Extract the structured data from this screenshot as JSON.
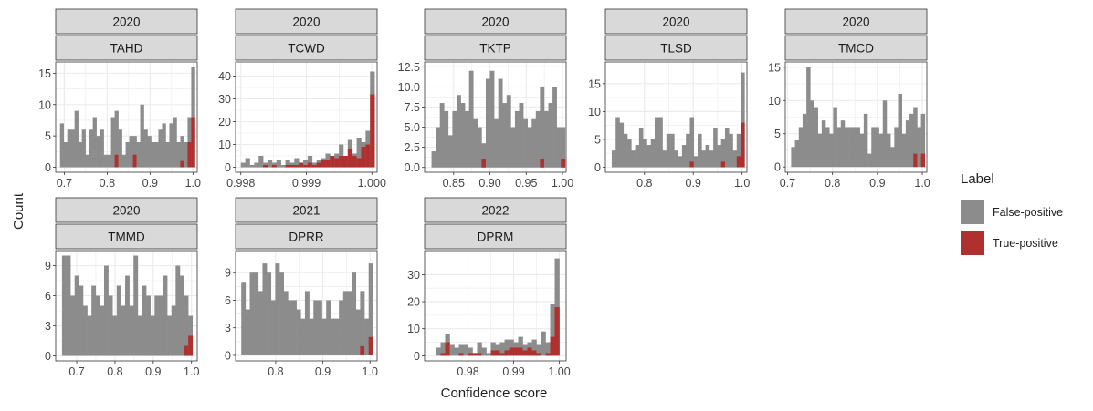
{
  "colors": {
    "false_positive": "#8c8c8c",
    "true_positive": "#b0302f",
    "strip_bg": "#d9d9d9",
    "grid": "#ebebeb"
  },
  "chart_data": {
    "type": "bar",
    "subtype": "faceted-histogram",
    "xlabel": "Confidence score",
    "ylabel": "Count",
    "legend": {
      "title": "Label",
      "placement": "right",
      "entries": [
        "False-positive",
        "True-positive"
      ]
    },
    "panels": [
      {
        "year": "2020",
        "name": "TAHD",
        "xlim": [
          0.68,
          1.01
        ],
        "ylim": [
          -0.8,
          16.8
        ],
        "xticks": [
          0.7,
          0.8,
          0.9,
          1.0
        ],
        "xtick_labels": [
          "0.7",
          "0.8",
          "0.9",
          "1.0"
        ],
        "yticks": [
          0,
          5,
          10,
          15
        ],
        "ytick_labels": [
          "0",
          "5",
          "10",
          "15"
        ],
        "bins": [
          0.69,
          0.6985,
          0.707,
          0.7155,
          0.724,
          0.7325,
          0.741,
          0.7495,
          0.758,
          0.7665,
          0.775,
          0.7835,
          0.792,
          0.8005,
          0.809,
          0.8175,
          0.826,
          0.8345,
          0.843,
          0.8515,
          0.86,
          0.8685,
          0.877,
          0.8855,
          0.894,
          0.9025,
          0.911,
          0.9195,
          0.928,
          0.9365,
          0.945,
          0.9535,
          0.962,
          0.9705,
          0.979,
          0.9875,
          0.996,
          1.0045
        ],
        "false_positive": [
          7,
          4,
          6,
          6,
          9,
          4,
          6,
          2,
          6,
          8,
          5,
          6,
          2,
          2,
          8,
          9,
          6,
          2,
          4,
          5,
          5,
          4,
          10,
          6,
          5,
          4,
          4,
          6,
          7,
          4,
          7,
          8,
          4,
          5,
          4,
          8,
          16
        ],
        "true_positive": [
          0,
          0,
          0,
          0,
          0,
          0,
          0,
          0,
          0,
          0,
          0,
          0,
          0,
          0,
          0,
          2,
          0,
          0,
          0,
          0,
          2,
          0,
          0,
          0,
          0,
          0,
          0,
          0,
          0,
          0,
          0,
          0,
          0,
          1,
          0,
          4,
          8
        ]
      },
      {
        "year": "2020",
        "name": "TCWD",
        "xlim": [
          0.99792,
          1.00008
        ],
        "ylim": [
          -2.2,
          46.2
        ],
        "xticks": [
          0.998,
          0.999,
          1.0
        ],
        "xtick_labels": [
          "0.998",
          "0.999",
          "1.000"
        ],
        "yticks": [
          0,
          10,
          20,
          30,
          40
        ],
        "ytick_labels": [
          "0",
          "10",
          "20",
          "30",
          "40"
        ],
        "bins": [
          0.998,
          0.998068,
          0.998136,
          0.998204,
          0.998272,
          0.99834,
          0.998408,
          0.998476,
          0.998544,
          0.998612,
          0.99868,
          0.998748,
          0.998816,
          0.998884,
          0.998952,
          0.99902,
          0.999088,
          0.999156,
          0.999224,
          0.999292,
          0.99936,
          0.999428,
          0.999496,
          0.999564,
          0.999632,
          0.9997,
          0.999768,
          0.999836,
          0.999904,
          0.999972,
          1.00004
        ],
        "false_positive": [
          2,
          4,
          1,
          2,
          5,
          2,
          3,
          2,
          3,
          1,
          3,
          2,
          4,
          2,
          3,
          5,
          2,
          3,
          4,
          6,
          5,
          6,
          10,
          5,
          12,
          6,
          13,
          11,
          16,
          42
        ],
        "true_positive": [
          0,
          0,
          0,
          0,
          0,
          1,
          0,
          1,
          0,
          0,
          1,
          1,
          1,
          2,
          1,
          2,
          1,
          2,
          3,
          3,
          5,
          4,
          5,
          5,
          8,
          5,
          4,
          9,
          10,
          32
        ]
      },
      {
        "year": "2020",
        "name": "TKTP",
        "xlim": [
          0.81,
          1.005
        ],
        "ylim": [
          -0.6,
          13.1
        ],
        "xticks": [
          0.85,
          0.9,
          0.95,
          1.0
        ],
        "xtick_labels": [
          "0.85",
          "0.90",
          "0.95",
          "1.00"
        ],
        "yticks": [
          0,
          2.5,
          5,
          7.5,
          10,
          12.5
        ],
        "ytick_labels": [
          "0.0",
          "2.5",
          "5.0",
          "7.5",
          "10.0",
          "12.5"
        ],
        "bins": [
          0.8195,
          0.82525,
          0.831,
          0.83675,
          0.8425,
          0.84825,
          0.854,
          0.85975,
          0.8655,
          0.87125,
          0.877,
          0.88275,
          0.8885,
          0.89425,
          0.9,
          0.90575,
          0.9115,
          0.91725,
          0.923,
          0.92875,
          0.9345,
          0.94025,
          0.946,
          0.95175,
          0.9575,
          0.96325,
          0.969,
          0.97475,
          0.9805,
          0.98625,
          0.992,
          0.99775,
          1.0035
        ],
        "false_positive": [
          2,
          5,
          8,
          7,
          4,
          7,
          9,
          8,
          7,
          12,
          6,
          5,
          3,
          11,
          12,
          6,
          11,
          8,
          9,
          5,
          7,
          8,
          6,
          5,
          6,
          7,
          10,
          7,
          8,
          10,
          5,
          5
        ],
        "true_positive": [
          0,
          0,
          0,
          0,
          0,
          0,
          0,
          0,
          0,
          0,
          0,
          0,
          1,
          0,
          0,
          0,
          0,
          0,
          0,
          0,
          0,
          0,
          0,
          0,
          0,
          0,
          1,
          0,
          0,
          0,
          0,
          1
        ]
      },
      {
        "year": "2020",
        "name": "TLSD",
        "xlim": [
          0.72,
          1.01
        ],
        "ylim": [
          -0.9,
          18.9
        ],
        "xticks": [
          0.8,
          0.9,
          1.0
        ],
        "xtick_labels": [
          "0.8",
          "0.9",
          "1.0"
        ],
        "yticks": [
          0,
          5,
          10,
          15
        ],
        "ytick_labels": [
          "0",
          "5",
          "10",
          "15"
        ],
        "bins": [
          0.733,
          0.741,
          0.749,
          0.757,
          0.765,
          0.773,
          0.781,
          0.789,
          0.797,
          0.805,
          0.813,
          0.821,
          0.829,
          0.837,
          0.845,
          0.853,
          0.861,
          0.869,
          0.877,
          0.885,
          0.893,
          0.901,
          0.909,
          0.917,
          0.925,
          0.933,
          0.941,
          0.949,
          0.957,
          0.965,
          0.973,
          0.981,
          0.989,
          0.997,
          1.005
        ],
        "false_positive": [
          3,
          9,
          8,
          6,
          5,
          3,
          4,
          7,
          5,
          4,
          5,
          9,
          9,
          3,
          6,
          6,
          3,
          2,
          4,
          6,
          9,
          2,
          6,
          3,
          4,
          3,
          7,
          4,
          5,
          7,
          6,
          3,
          6,
          17
        ],
        "true_positive": [
          0,
          0,
          0,
          0,
          0,
          0,
          0,
          0,
          0,
          0,
          0,
          0,
          0,
          0,
          0,
          0,
          0,
          0,
          0,
          0,
          1,
          0,
          0,
          0,
          0,
          0,
          0,
          0,
          1,
          0,
          0,
          0,
          2,
          8
        ]
      },
      {
        "year": "2020",
        "name": "TMCD",
        "xlim": [
          0.695,
          1.01
        ],
        "ylim": [
          -0.8,
          15.8
        ],
        "xticks": [
          0.7,
          0.8,
          0.9,
          1.0
        ],
        "xtick_labels": [
          "0.7",
          "0.8",
          "0.9",
          "1.0"
        ],
        "yticks": [
          0,
          5,
          10,
          15
        ],
        "ytick_labels": [
          "0",
          "5",
          "10",
          "15"
        ],
        "bins": [
          0.708,
          0.7165,
          0.725,
          0.7335,
          0.742,
          0.7505,
          0.759,
          0.7675,
          0.776,
          0.7845,
          0.793,
          0.8015,
          0.81,
          0.8185,
          0.827,
          0.8355,
          0.844,
          0.8525,
          0.861,
          0.8695,
          0.878,
          0.8865,
          0.895,
          0.9035,
          0.912,
          0.9205,
          0.929,
          0.9375,
          0.946,
          0.9545,
          0.963,
          0.9715,
          0.98,
          0.9885,
          0.997,
          1.0055
        ],
        "false_positive": [
          3,
          4,
          6,
          8,
          15,
          10,
          9,
          5,
          7,
          6,
          5,
          9,
          6,
          7,
          6,
          6,
          6,
          6,
          5,
          8,
          2,
          6,
          6,
          5,
          10,
          5,
          3,
          6,
          11,
          5,
          7,
          8,
          9,
          6,
          8
        ],
        "true_positive": [
          0,
          0,
          0,
          0,
          0,
          0,
          0,
          0,
          0,
          0,
          0,
          0,
          0,
          0,
          0,
          0,
          0,
          0,
          0,
          0,
          0,
          0,
          0,
          0,
          0,
          0,
          0,
          0,
          0,
          0,
          0,
          0,
          2,
          0,
          2
        ]
      },
      {
        "year": "2020",
        "name": "TMMD",
        "xlim": [
          0.645,
          1.015
        ],
        "ylim": [
          -0.5,
          10.5
        ],
        "xticks": [
          0.7,
          0.8,
          0.9,
          1.0
        ],
        "xtick_labels": [
          "0.7",
          "0.8",
          "0.9",
          "1.0"
        ],
        "yticks": [
          0,
          3,
          6,
          9
        ],
        "ytick_labels": [
          "0",
          "3",
          "6",
          "9"
        ],
        "bins": [
          0.6615,
          0.6725,
          0.6835,
          0.6945,
          0.7055,
          0.7165,
          0.7275,
          0.7385,
          0.7495,
          0.7605,
          0.7715,
          0.7825,
          0.7935,
          0.8045,
          0.8155,
          0.8265,
          0.8375,
          0.8485,
          0.8595,
          0.8705,
          0.8815,
          0.8925,
          0.9035,
          0.9145,
          0.9255,
          0.9365,
          0.9475,
          0.9585,
          0.9695,
          0.9805,
          0.9915,
          1.0025
        ],
        "false_positive": [
          10,
          10,
          6,
          8,
          7,
          5,
          4,
          7,
          6,
          5,
          9,
          6,
          4,
          7,
          5,
          8,
          5,
          10,
          4,
          7,
          6,
          4,
          6,
          6,
          8,
          4,
          5,
          9,
          8,
          6,
          4
        ],
        "true_positive": [
          0,
          0,
          0,
          0,
          0,
          0,
          0,
          0,
          0,
          0,
          0,
          0,
          0,
          0,
          0,
          0,
          0,
          0,
          0,
          0,
          0,
          0,
          0,
          0,
          0,
          0,
          0,
          0,
          0,
          1,
          2
        ]
      },
      {
        "year": "2021",
        "name": "DPRR",
        "xlim": [
          0.715,
          1.015
        ],
        "ylim": [
          -0.6,
          11.4
        ],
        "xticks": [
          0.8,
          0.9,
          1.0
        ],
        "xtick_labels": [
          "0.8",
          "0.9",
          "1.0"
        ],
        "yticks": [
          0,
          3,
          6,
          9
        ],
        "ytick_labels": [
          "0",
          "3",
          "6",
          "9"
        ],
        "bins": [
          0.727,
          0.736,
          0.745,
          0.754,
          0.763,
          0.772,
          0.781,
          0.79,
          0.799,
          0.808,
          0.817,
          0.826,
          0.835,
          0.844,
          0.853,
          0.862,
          0.871,
          0.88,
          0.889,
          0.898,
          0.907,
          0.916,
          0.925,
          0.934,
          0.943,
          0.952,
          0.961,
          0.97,
          0.979,
          0.988,
          0.997,
          1.006
        ],
        "false_positive": [
          8,
          5,
          9,
          9,
          7,
          10,
          9,
          6,
          10,
          9,
          7,
          6,
          6,
          5,
          4,
          7,
          4,
          6,
          6,
          4,
          6,
          4,
          4,
          6,
          7,
          7,
          9,
          5,
          7,
          4,
          10
        ],
        "true_positive": [
          0,
          0,
          0,
          0,
          0,
          0,
          0,
          0,
          0,
          0,
          0,
          0,
          0,
          0,
          0,
          0,
          0,
          0,
          0,
          0,
          0,
          0,
          0,
          0,
          0,
          0,
          0,
          0,
          1,
          0,
          2
        ]
      },
      {
        "year": "2022",
        "name": "DPRM",
        "xlim": [
          0.9705,
          1.0015
        ],
        "ylim": [
          -1.9,
          38.9
        ],
        "xticks": [
          0.98,
          0.99,
          1.0
        ],
        "xtick_labels": [
          "0.98",
          "0.99",
          "1.00"
        ],
        "yticks": [
          0,
          10,
          20,
          30
        ],
        "ytick_labels": [
          "0",
          "10",
          "20",
          "30"
        ],
        "bins": [
          0.973,
          0.974,
          0.975,
          0.976,
          0.977,
          0.978,
          0.979,
          0.98,
          0.981,
          0.982,
          0.983,
          0.984,
          0.985,
          0.986,
          0.987,
          0.988,
          0.989,
          0.99,
          0.991,
          0.992,
          0.993,
          0.994,
          0.995,
          0.996,
          0.997,
          0.998,
          0.999,
          1.0
        ],
        "false_positive": [
          3,
          5,
          8,
          4,
          3,
          4,
          4,
          3,
          1,
          5,
          3,
          1,
          5,
          4,
          5,
          6,
          6,
          5,
          7,
          4,
          5,
          6,
          4,
          9,
          5,
          19,
          36
        ],
        "true_positive": [
          0,
          1,
          5,
          0,
          0,
          1,
          0,
          1,
          1,
          1,
          0,
          0,
          2,
          2,
          1,
          2,
          3,
          3,
          3,
          2,
          3,
          2,
          1,
          0,
          1,
          7,
          18
        ]
      }
    ]
  }
}
